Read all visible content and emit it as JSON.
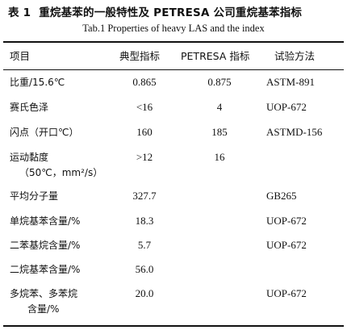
{
  "table_number": "表 1",
  "title_cn": "重烷基苯的一般特性及 PETRESA 公司重烷基苯指标",
  "title_en": "Tab.1    Properties of heavy LAS and the index",
  "headers": [
    "项目",
    "典型指标",
    "PETRESA 指标",
    "试验方法"
  ],
  "rows": [
    {
      "item": "比重/15.6℃",
      "typical": "0.865",
      "petresa": "0.875",
      "method": "ASTM-891"
    },
    {
      "item": "赛氏色泽",
      "typical": "<16",
      "petresa": "4",
      "method": "UOP-672"
    },
    {
      "item": "闪点（开口℃）",
      "typical": "160",
      "petresa": "185",
      "method": "ASTMD-156"
    },
    {
      "item": "运动黏度",
      "item2": "（50℃，mm²/s）",
      "typical": ">12",
      "petresa": "16",
      "method": ""
    },
    {
      "item": "平均分子量",
      "typical": "327.7",
      "petresa": "",
      "method": "GB265"
    },
    {
      "item": "单烷基苯含量/%",
      "typical": "18.3",
      "petresa": "",
      "method": "UOP-672"
    },
    {
      "item": "二苯基烷含量/%",
      "typical": "5.7",
      "petresa": "",
      "method": "UOP-672"
    },
    {
      "item": "二烷基苯含量/%",
      "typical": "56.0",
      "petresa": "",
      "method": ""
    },
    {
      "item": "多烷苯、多苯烷",
      "item2": "含量/%",
      "typical": "20.0",
      "petresa": "",
      "method": "UOP-672"
    }
  ]
}
